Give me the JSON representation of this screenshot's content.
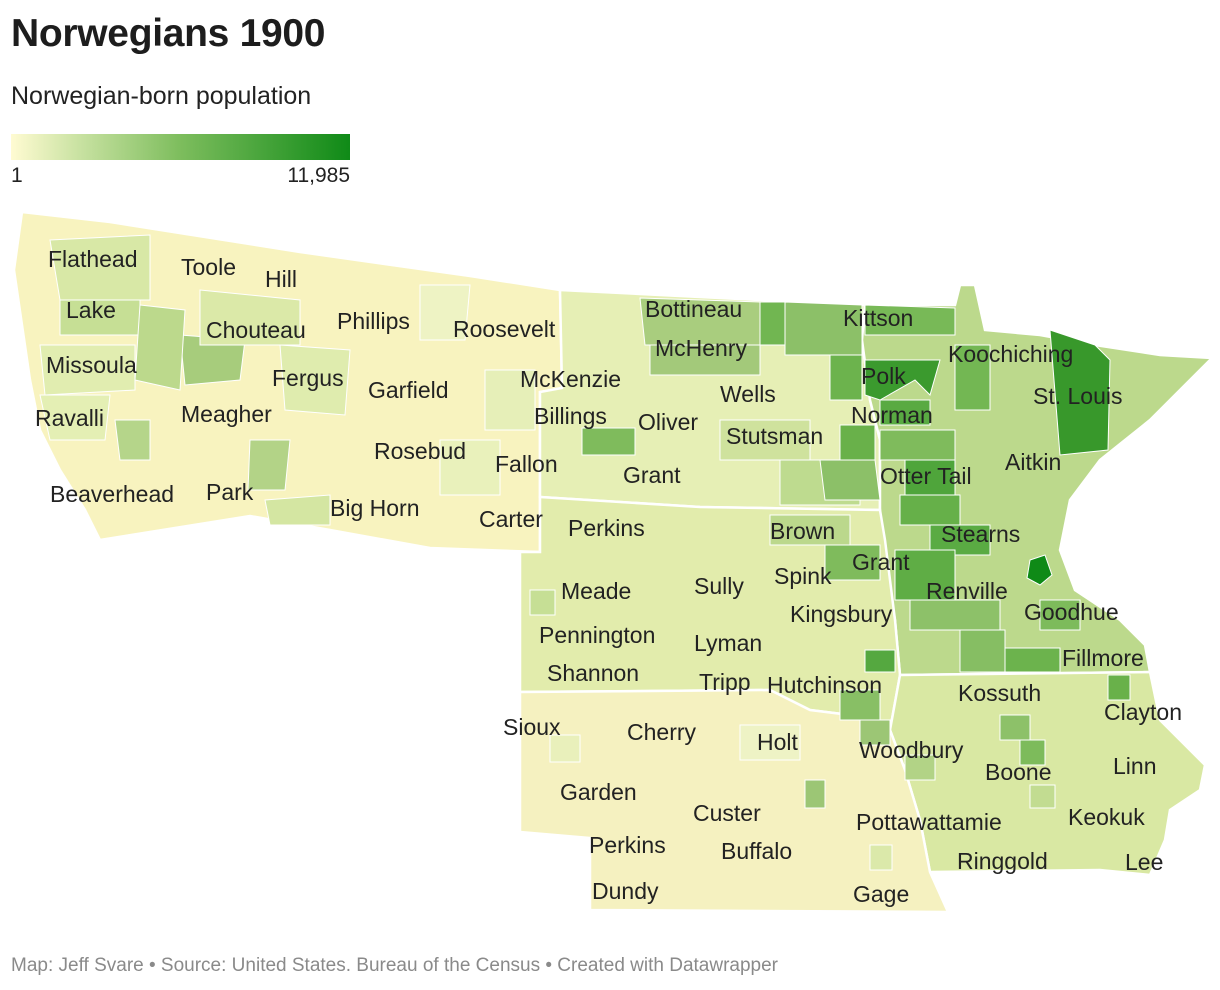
{
  "title": "Norwegians 1900",
  "subtitle": "Norwegian-born population",
  "legend": {
    "min_label": "1",
    "max_label": "11,985",
    "color_low": "#fffbd2",
    "color_high": "#0f8a17"
  },
  "footer": "Map: Jeff Svare • Source: United States. Bureau of the Census • Created with Datawrapper",
  "labels": [
    {
      "id": "flathead",
      "text": "Flathead"
    },
    {
      "id": "toole",
      "text": "Toole"
    },
    {
      "id": "hill",
      "text": "Hill"
    },
    {
      "id": "lake",
      "text": "Lake"
    },
    {
      "id": "chouteau",
      "text": "Chouteau"
    },
    {
      "id": "phillips",
      "text": "Phillips"
    },
    {
      "id": "roosevelt",
      "text": "Roosevelt"
    },
    {
      "id": "missoula",
      "text": "Missoula"
    },
    {
      "id": "fergus",
      "text": "Fergus"
    },
    {
      "id": "garfield",
      "text": "Garfield"
    },
    {
      "id": "mckenzie",
      "text": "McKenzie"
    },
    {
      "id": "ravalli",
      "text": "Ravalli"
    },
    {
      "id": "meagher",
      "text": "Meagher"
    },
    {
      "id": "billings",
      "text": "Billings"
    },
    {
      "id": "rosebud",
      "text": "Rosebud"
    },
    {
      "id": "fallon",
      "text": "Fallon"
    },
    {
      "id": "beaverhead",
      "text": "Beaverhead"
    },
    {
      "id": "park",
      "text": "Park"
    },
    {
      "id": "bighorn",
      "text": "Big Horn"
    },
    {
      "id": "carter",
      "text": "Carter"
    },
    {
      "id": "bottineau",
      "text": "Bottineau"
    },
    {
      "id": "kittson",
      "text": "Kittson"
    },
    {
      "id": "mchenry",
      "text": "McHenry"
    },
    {
      "id": "koochiching",
      "text": "Koochiching"
    },
    {
      "id": "polk",
      "text": "Polk"
    },
    {
      "id": "wells",
      "text": "Wells"
    },
    {
      "id": "stlouis",
      "text": "St. Louis"
    },
    {
      "id": "oliver",
      "text": "Oliver"
    },
    {
      "id": "norman",
      "text": "Norman"
    },
    {
      "id": "stutsman",
      "text": "Stutsman"
    },
    {
      "id": "aitkin",
      "text": "Aitkin"
    },
    {
      "id": "grant_nd",
      "text": "Grant"
    },
    {
      "id": "ottertail",
      "text": "Otter Tail"
    },
    {
      "id": "perkins_sd",
      "text": "Perkins"
    },
    {
      "id": "brown",
      "text": "Brown"
    },
    {
      "id": "stearns",
      "text": "Stearns"
    },
    {
      "id": "grant_sd",
      "text": "Grant"
    },
    {
      "id": "spink",
      "text": "Spink"
    },
    {
      "id": "sully",
      "text": "Sully"
    },
    {
      "id": "meade",
      "text": "Meade"
    },
    {
      "id": "renville",
      "text": "Renville"
    },
    {
      "id": "goodhue",
      "text": "Goodhue"
    },
    {
      "id": "kingsbury",
      "text": "Kingsbury"
    },
    {
      "id": "pennington",
      "text": "Pennington"
    },
    {
      "id": "lyman",
      "text": "Lyman"
    },
    {
      "id": "fillmore",
      "text": "Fillmore"
    },
    {
      "id": "shannon",
      "text": "Shannon"
    },
    {
      "id": "tripp",
      "text": "Tripp"
    },
    {
      "id": "hutchinson",
      "text": "Hutchinson"
    },
    {
      "id": "kossuth",
      "text": "Kossuth"
    },
    {
      "id": "clayton",
      "text": "Clayton"
    },
    {
      "id": "sioux",
      "text": "Sioux"
    },
    {
      "id": "cherry",
      "text": "Cherry"
    },
    {
      "id": "holt",
      "text": "Holt"
    },
    {
      "id": "woodbury",
      "text": "Woodbury"
    },
    {
      "id": "boone",
      "text": "Boone"
    },
    {
      "id": "linn",
      "text": "Linn"
    },
    {
      "id": "garden",
      "text": "Garden"
    },
    {
      "id": "custer",
      "text": "Custer"
    },
    {
      "id": "pottawattamie",
      "text": "Pottawattamie"
    },
    {
      "id": "keokuk",
      "text": "Keokuk"
    },
    {
      "id": "perkins_ne",
      "text": "Perkins"
    },
    {
      "id": "buffalo",
      "text": "Buffalo"
    },
    {
      "id": "ringgold",
      "text": "Ringgold"
    },
    {
      "id": "lee",
      "text": "Lee"
    },
    {
      "id": "dundy",
      "text": "Dundy"
    },
    {
      "id": "gage",
      "text": "Gage"
    }
  ]
}
